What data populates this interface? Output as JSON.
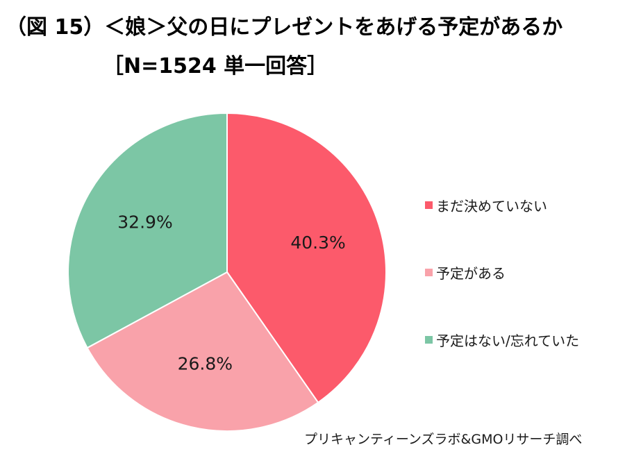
{
  "title": {
    "line1": "（図 15）＜娘＞父の日にプレゼントをあげる予定があるか",
    "line2": "［N=1524 単一回答］"
  },
  "chart_data": {
    "type": "pie",
    "slices": [
      {
        "label": "まだ決めていない",
        "value": 40.3,
        "value_label": "40.3%",
        "color": "#fc5a6b"
      },
      {
        "label": "予定がある",
        "value": 26.8,
        "value_label": "26.8%",
        "color": "#f9a2aa"
      },
      {
        "label": "予定はない/忘れていた",
        "value": 32.9,
        "value_label": "32.9%",
        "color": "#7cc6a5"
      }
    ],
    "start": "12 o'clock",
    "direction": "clockwise",
    "legend_position": "right"
  },
  "source": "プリキャンティーンズラボ&GMOリサーチ調べ"
}
